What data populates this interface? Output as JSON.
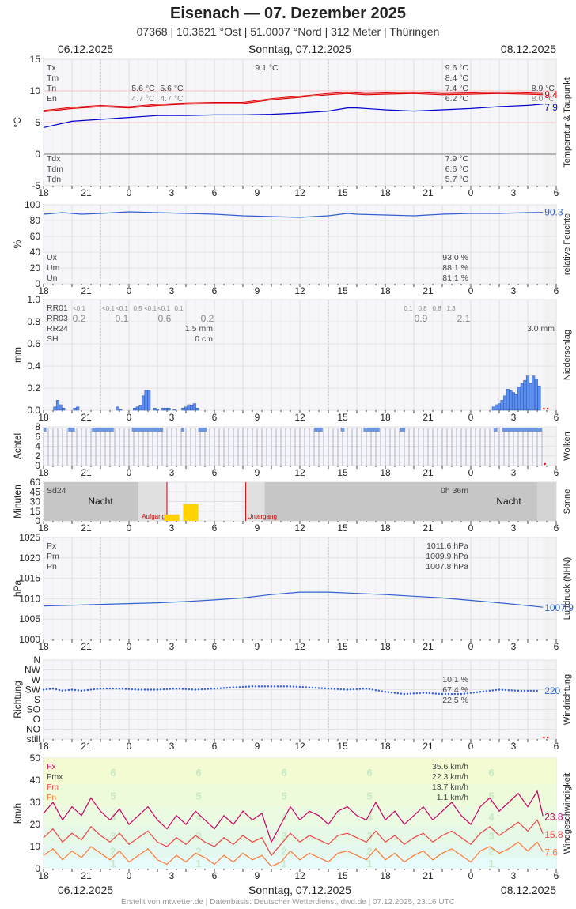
{
  "header": {
    "title": "Eisenach  —  07. Dezember 2025",
    "subtitle": "07368  |  10.3621 °Ost  |  51.0007 °Nord  |  312 Meter  |  Thüringen",
    "date_left": "06.12.2025",
    "date_center": "Sonntag, 07.12.2025",
    "date_right": "08.12.2025"
  },
  "footer": "Erstellt von mtwetter.de | Datenbasis: Deutscher Wetterdienst, dwd.de | 07.12.2025, 23:16 UTC",
  "x_ticks": [
    "18",
    "21",
    "0",
    "3",
    "6",
    "9",
    "12",
    "15",
    "18",
    "21",
    "0",
    "3",
    "6"
  ],
  "colors": {
    "red": "#e00000",
    "blue": "#0000cc",
    "royal": "#3060d0",
    "bar": "#5b8ff0",
    "gray": "#777777",
    "magenta": "#cc0066",
    "salmon": "#ee4444",
    "orange": "#ff7733"
  },
  "chart_data": [
    {
      "id": "temperature",
      "type": "line",
      "ylabel": "°C",
      "side_label": "Temperatur & Taupunkt",
      "ylim": [
        -5,
        15
      ],
      "yticks": [
        "15",
        "10",
        "5",
        "0",
        "-5"
      ],
      "stats_left": [
        "Tx",
        "Tm",
        "Tn",
        "En"
      ],
      "stats_left_bottom": [
        "Tdx",
        "Tdm",
        "Tdn"
      ],
      "stats_values": [
        "9.6 °C",
        "8.4 °C",
        "7.4 °C",
        "6.2 °C"
      ],
      "stats_values_bottom": [
        "7.9 °C",
        "6.6 °C",
        "5.7 °C"
      ],
      "annotations": [
        {
          "text": "9.1 °C",
          "hour": 23.5,
          "row": 0
        },
        {
          "text": "5.6 °C",
          "hour": 10.5,
          "row": 2
        },
        {
          "text": "5.6 °C",
          "hour": 13.5,
          "row": 2
        },
        {
          "text": "4.7 °C",
          "hour": 10.5,
          "row": 3
        },
        {
          "text": "4.7 °C",
          "hour": 13.5,
          "row": 3
        },
        {
          "text": "8.9 °C",
          "hour": 36,
          "row": 2
        },
        {
          "text": "8.0 °C",
          "hour": 36,
          "row": 3
        }
      ],
      "last_values": [
        "9.4",
        "7.9"
      ],
      "series": [
        {
          "name": "Temperatur",
          "color": "#e00000",
          "hours": [
            0,
            3,
            6,
            9,
            12,
            15,
            18,
            21,
            24,
            27,
            30,
            32,
            33,
            34,
            36,
            39,
            42,
            45,
            48,
            51,
            52.6
          ],
          "values": [
            6.7,
            7.2,
            7.5,
            7.3,
            7.7,
            7.9,
            8.0,
            8.0,
            8.6,
            9.0,
            9.4,
            9.6,
            9.5,
            9.4,
            9.5,
            9.6,
            9.4,
            9.5,
            9.6,
            9.5,
            9.4
          ]
        },
        {
          "name": "Taupunkt",
          "color": "#0000cc",
          "hours": [
            0,
            3,
            6,
            9,
            12,
            15,
            18,
            21,
            24,
            27,
            30,
            32,
            33,
            35,
            36,
            39,
            42,
            45,
            48,
            51,
            52.6
          ],
          "values": [
            4.2,
            5.2,
            5.5,
            5.8,
            6.1,
            6.1,
            6.2,
            6.2,
            6.3,
            6.5,
            6.8,
            7.3,
            7.3,
            7.1,
            7.0,
            6.8,
            7.0,
            7.2,
            7.5,
            7.7,
            7.9
          ]
        }
      ]
    },
    {
      "id": "humidity",
      "type": "line",
      "ylabel": "%",
      "side_label": "relative Feuchte",
      "ylim": [
        0,
        100
      ],
      "yticks": [
        "100",
        "80",
        "60",
        "40",
        "20",
        "0"
      ],
      "stats_left": [
        "Ux",
        "Um",
        "Un"
      ],
      "stats_values": [
        "93.0 %",
        "88.1 %",
        "81.1 %"
      ],
      "last_values": [
        "90.3"
      ],
      "series": [
        {
          "name": "Feuchte",
          "color": "#3060d0",
          "hours": [
            0,
            2,
            4,
            6,
            9,
            12,
            15,
            18,
            21,
            24,
            27,
            30,
            32,
            33,
            36,
            39,
            42,
            45,
            48,
            51,
            52.6
          ],
          "values": [
            88,
            90,
            88,
            89,
            91,
            90,
            89,
            88,
            86,
            85,
            84,
            86,
            89,
            88,
            87,
            86,
            88,
            89,
            89,
            90,
            90.3
          ]
        }
      ]
    },
    {
      "id": "precipitation",
      "type": "bar",
      "ylabel": "mm",
      "side_label": "Niederschlag",
      "ylim": [
        0,
        1.0
      ],
      "yticks": [
        "1.0",
        "0.8",
        "0.6",
        "0.4",
        "0.2",
        "0.0"
      ],
      "stats_left": [
        "RR01",
        "RR03",
        "RR24",
        "SH"
      ],
      "stats_values": [
        "1.5 mm",
        "0 cm"
      ],
      "rr01_left": [
        "<0.1",
        "<0.1",
        "<0.1",
        "0.5",
        "<0.1",
        "<0.1",
        "0.1"
      ],
      "rr03_left": [
        "0.2",
        "0.1",
        "0.6",
        "0.2"
      ],
      "rr01_right": [
        "0.1",
        "0.8",
        "0.8",
        "1.3"
      ],
      "rr03_right": [
        "0.9",
        "2.1"
      ],
      "right_total": "3.0 mm",
      "bars": [
        {
          "hour": 1.2,
          "value": 0.03
        },
        {
          "hour": 1.5,
          "value": 0.09
        },
        {
          "hour": 1.8,
          "value": 0.05
        },
        {
          "hour": 2.1,
          "value": 0.02
        },
        {
          "hour": 3.3,
          "value": 0.02
        },
        {
          "hour": 3.6,
          "value": 0.03
        },
        {
          "hour": 7.8,
          "value": 0.03
        },
        {
          "hour": 8.1,
          "value": 0.01
        },
        {
          "hour": 9.6,
          "value": 0.02
        },
        {
          "hour": 9.9,
          "value": 0.03
        },
        {
          "hour": 10.2,
          "value": 0.04
        },
        {
          "hour": 10.5,
          "value": 0.13
        },
        {
          "hour": 10.8,
          "value": 0.18
        },
        {
          "hour": 11.1,
          "value": 0.18
        },
        {
          "hour": 11.7,
          "value": 0.02
        },
        {
          "hour": 12.0,
          "value": 0.01
        },
        {
          "hour": 12.6,
          "value": 0.02
        },
        {
          "hour": 12.9,
          "value": 0.02
        },
        {
          "hour": 13.2,
          "value": 0.02
        },
        {
          "hour": 13.8,
          "value": 0.01
        },
        {
          "hour": 14.7,
          "value": 0.02
        },
        {
          "hour": 15.0,
          "value": 0.03
        },
        {
          "hour": 15.3,
          "value": 0.05
        },
        {
          "hour": 15.6,
          "value": 0.04
        },
        {
          "hour": 15.9,
          "value": 0.06
        },
        {
          "hour": 16.2,
          "value": 0.02
        },
        {
          "hour": 47.4,
          "value": 0.03
        },
        {
          "hour": 47.7,
          "value": 0.05
        },
        {
          "hour": 48.0,
          "value": 0.06
        },
        {
          "hour": 48.3,
          "value": 0.09
        },
        {
          "hour": 48.6,
          "value": 0.13
        },
        {
          "hour": 48.9,
          "value": 0.19
        },
        {
          "hour": 49.2,
          "value": 0.18
        },
        {
          "hour": 49.5,
          "value": 0.16
        },
        {
          "hour": 49.8,
          "value": 0.14
        },
        {
          "hour": 50.1,
          "value": 0.21
        },
        {
          "hour": 50.4,
          "value": 0.24
        },
        {
          "hour": 50.7,
          "value": 0.27
        },
        {
          "hour": 51.0,
          "value": 0.31
        },
        {
          "hour": 51.3,
          "value": 0.24
        },
        {
          "hour": 51.6,
          "value": 0.31
        },
        {
          "hour": 51.9,
          "value": 0.28
        },
        {
          "hour": 52.2,
          "value": 0.22
        }
      ]
    },
    {
      "id": "clouds",
      "type": "bar",
      "ylabel": "Achtel",
      "side_label": "Wolken",
      "ylim": [
        0,
        8
      ],
      "yticks": [
        "8",
        "6",
        "4",
        "2",
        "0"
      ],
      "full_until_hour": 52.6
    },
    {
      "id": "sunshine",
      "type": "bar",
      "ylabel": "Minuten",
      "side_label": "Sonne",
      "ylim": [
        0,
        60
      ],
      "yticks": [
        "60",
        "45",
        "30",
        "15",
        "0"
      ],
      "stats_left": [
        "Sd24"
      ],
      "stats_values": [
        "0h 36m"
      ],
      "night_labels": [
        "Nacht",
        "Nacht"
      ],
      "sunrise_label": "Aufgang",
      "sunset_label": "Untergang",
      "sunrise_hour": 13.0,
      "sunset_hour": 21.3,
      "bars": [
        {
          "hour": 13.5,
          "value": 10
        },
        {
          "hour": 15.5,
          "value": 26
        }
      ]
    },
    {
      "id": "pressure",
      "type": "line",
      "ylabel": "hPa",
      "side_label": "Luftdruck (NHN)",
      "ylim": [
        1000,
        1025
      ],
      "yticks": [
        "1025",
        "1020",
        "1015",
        "1010",
        "1005",
        "1000"
      ],
      "stats_left": [
        "Px",
        "Pm",
        "Pn"
      ],
      "stats_values": [
        "1011.6 hPa",
        "1009.9 hPa",
        "1007.8 hPa"
      ],
      "last_values": [
        "1007.9"
      ],
      "series": [
        {
          "name": "Luftdruck",
          "color": "#3060d0",
          "hours": [
            0,
            3,
            6,
            9,
            12,
            15,
            18,
            21,
            24,
            27,
            30,
            33,
            36,
            39,
            42,
            45,
            48,
            51,
            52.6
          ],
          "values": [
            1008.2,
            1008.4,
            1008.6,
            1008.8,
            1009.0,
            1009.3,
            1009.7,
            1010.2,
            1011.0,
            1011.6,
            1011.6,
            1011.3,
            1011.0,
            1010.6,
            1010.2,
            1009.6,
            1009.0,
            1008.3,
            1007.9
          ]
        }
      ]
    },
    {
      "id": "wind_direction",
      "type": "scatter",
      "ylabel": "Richtung",
      "side_label": "Windrichtung",
      "yticks": [
        "N",
        "NW",
        "W",
        "SW",
        "S",
        "SO",
        "O",
        "NO",
        "still"
      ],
      "stats_values": [
        "10.1 %",
        "67.4 %",
        "22.5 %"
      ],
      "last_values": [
        "220"
      ],
      "series": [
        {
          "name": "Richtung",
          "color": "#3060d0",
          "hours": [
            0,
            1,
            2,
            3,
            4,
            6,
            8,
            10,
            12,
            14,
            16,
            18,
            20,
            22,
            24,
            26,
            28,
            30,
            32,
            34,
            36,
            38,
            40,
            42,
            44,
            46,
            48,
            50,
            52
          ],
          "values": [
            225,
            230,
            220,
            225,
            220,
            230,
            230,
            225,
            225,
            230,
            225,
            230,
            235,
            240,
            240,
            240,
            235,
            230,
            225,
            230,
            215,
            205,
            210,
            205,
            205,
            215,
            225,
            220,
            220
          ]
        }
      ]
    },
    {
      "id": "wind_speed",
      "type": "line",
      "ylabel": "km/h",
      "side_label": "Windgeschwindigkeit",
      "ylim": [
        0,
        50
      ],
      "yticks": [
        "50",
        "40",
        "30",
        "20",
        "10",
        "0"
      ],
      "stats_left": [
        "Fx",
        "Fmx",
        "Fm",
        "Fn"
      ],
      "stats_values": [
        "35.6 km/h",
        "22.3 km/h",
        "13.7 km/h",
        "1.1 km/h"
      ],
      "beaufort": [
        "1",
        "2",
        "3",
        "4",
        "5",
        "6"
      ],
      "last_values": [
        "23.8",
        "15.8",
        "7.6"
      ],
      "series": [
        {
          "name": "Fx",
          "color": "#cc0066",
          "hours": [
            0,
            1,
            2,
            3,
            4,
            5,
            6,
            7,
            8,
            9,
            10,
            11,
            12,
            13,
            14,
            15,
            16,
            17,
            18,
            19,
            20,
            21,
            22,
            23,
            24,
            25,
            26,
            27,
            28,
            29,
            30,
            31,
            32,
            33,
            34,
            35,
            36,
            37,
            38,
            39,
            40,
            41,
            42,
            43,
            44,
            45,
            46,
            47,
            48,
            49,
            50,
            51,
            52,
            52.6
          ],
          "values": [
            25,
            30,
            22,
            28,
            24,
            32,
            26,
            22,
            27,
            20,
            24,
            28,
            22,
            18,
            24,
            20,
            26,
            22,
            18,
            24,
            20,
            26,
            22,
            25,
            12,
            20,
            28,
            22,
            26,
            24,
            20,
            26,
            28,
            24,
            22,
            30,
            22,
            26,
            20,
            24,
            28,
            22,
            26,
            30,
            24,
            20,
            28,
            32,
            26,
            30,
            34,
            28,
            35,
            23.8
          ]
        },
        {
          "name": "Fm",
          "color": "#ee4444",
          "hours": [
            0,
            1,
            2,
            3,
            4,
            5,
            6,
            7,
            8,
            9,
            10,
            11,
            12,
            13,
            14,
            15,
            16,
            17,
            18,
            19,
            20,
            21,
            22,
            23,
            24,
            25,
            26,
            27,
            28,
            29,
            30,
            31,
            32,
            33,
            34,
            35,
            36,
            37,
            38,
            39,
            40,
            41,
            42,
            43,
            44,
            45,
            46,
            47,
            48,
            49,
            50,
            51,
            52,
            52.6
          ],
          "values": [
            14,
            18,
            12,
            16,
            13,
            19,
            15,
            12,
            16,
            11,
            14,
            17,
            12,
            10,
            14,
            11,
            15,
            12,
            10,
            14,
            11,
            15,
            12,
            14,
            6,
            11,
            16,
            12,
            15,
            13,
            11,
            15,
            16,
            14,
            12,
            17,
            12,
            15,
            11,
            14,
            16,
            12,
            15,
            17,
            14,
            11,
            16,
            19,
            15,
            18,
            21,
            17,
            22,
            15.8
          ]
        },
        {
          "name": "Fn",
          "color": "#ff7733",
          "hours": [
            0,
            1,
            2,
            3,
            4,
            5,
            6,
            7,
            8,
            9,
            10,
            11,
            12,
            13,
            14,
            15,
            16,
            17,
            18,
            19,
            20,
            21,
            22,
            23,
            24,
            25,
            26,
            27,
            28,
            29,
            30,
            31,
            32,
            33,
            34,
            35,
            36,
            37,
            38,
            39,
            40,
            41,
            42,
            43,
            44,
            45,
            46,
            47,
            48,
            49,
            50,
            51,
            52,
            52.6
          ],
          "values": [
            6,
            9,
            4,
            8,
            5,
            10,
            7,
            4,
            8,
            3,
            6,
            9,
            4,
            2,
            6,
            3,
            7,
            5,
            2,
            6,
            3,
            7,
            4,
            6,
            1,
            3,
            8,
            4,
            7,
            5,
            3,
            7,
            8,
            6,
            4,
            9,
            4,
            7,
            3,
            6,
            8,
            4,
            7,
            9,
            6,
            3,
            8,
            10,
            7,
            9,
            12,
            8,
            12,
            7.6
          ]
        }
      ]
    }
  ]
}
